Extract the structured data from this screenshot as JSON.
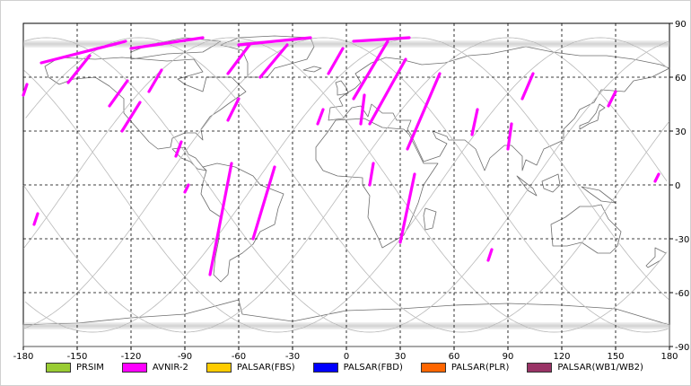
{
  "map": {
    "lon_ticks": [
      "-180",
      "-150",
      "-120",
      "-90",
      "-60",
      "-30",
      "0",
      "30",
      "60",
      "90",
      "120",
      "150",
      "180"
    ],
    "lat_ticks": [
      "90",
      "60",
      "30",
      "0",
      "-30",
      "-60",
      "-90"
    ],
    "lon_range": [
      -180,
      180
    ],
    "lat_range": [
      -90,
      90
    ],
    "grid": "dashed",
    "colors": {
      "coastline": "#6e6e6e",
      "orbit": "#bdbdbd",
      "grid": "#000000"
    }
  },
  "legend": {
    "placement": "bottom",
    "items": [
      {
        "label": "PRSIM",
        "color": "#99cc33"
      },
      {
        "label": "AVNIR-2",
        "color": "#ff00ff"
      },
      {
        "label": "PALSAR(FBS)",
        "color": "#ffcc00"
      },
      {
        "label": "PALSAR(FBD)",
        "color": "#0000ff"
      },
      {
        "label": "PALSAR(PLR)",
        "color": "#ff6600"
      },
      {
        "label": "PALSAR(WB1/WB2)",
        "color": "#993366"
      }
    ]
  },
  "chart_data": {
    "type": "map",
    "series": [
      {
        "name": "AVNIR-2",
        "color": "#ff00ff",
        "segments": [
          [
            [
              -143,
              72
            ],
            [
              -155,
              57
            ]
          ],
          [
            [
              -122,
              58
            ],
            [
              -132,
              44
            ]
          ],
          [
            [
              -103,
              64
            ],
            [
              -110,
              52
            ]
          ],
          [
            [
              -115,
              46
            ],
            [
              -125,
              30
            ]
          ],
          [
            [
              -92,
              24
            ],
            [
              -95,
              16
            ]
          ],
          [
            [
              -88,
              0
            ],
            [
              -90,
              -4
            ]
          ],
          [
            [
              -54,
              78
            ],
            [
              -66,
              62
            ]
          ],
          [
            [
              -60,
              48
            ],
            [
              -66,
              36
            ]
          ],
          [
            [
              -64,
              12
            ],
            [
              -76,
              -50
            ]
          ],
          [
            [
              -33,
              78
            ],
            [
              -48,
              60
            ]
          ],
          [
            [
              -40,
              10
            ],
            [
              -52,
              -30
            ]
          ],
          [
            [
              -2,
              76
            ],
            [
              -10,
              62
            ]
          ],
          [
            [
              -13,
              42
            ],
            [
              -16,
              34
            ]
          ],
          [
            [
              23,
              80
            ],
            [
              4,
              48
            ]
          ],
          [
            [
              10,
              50
            ],
            [
              8,
              34
            ]
          ],
          [
            [
              15,
              12
            ],
            [
              13,
              0
            ]
          ],
          [
            [
              33,
              70
            ],
            [
              13,
              34
            ]
          ],
          [
            [
              52,
              62
            ],
            [
              34,
              20
            ]
          ],
          [
            [
              38,
              6
            ],
            [
              30,
              -32
            ]
          ],
          [
            [
              73,
              42
            ],
            [
              70,
              28
            ]
          ],
          [
            [
              92,
              34
            ],
            [
              90,
              20
            ]
          ],
          [
            [
              104,
              62
            ],
            [
              98,
              48
            ]
          ],
          [
            [
              150,
              52
            ],
            [
              146,
              44
            ]
          ],
          [
            [
              174,
              6
            ],
            [
              172,
              2
            ]
          ],
          [
            [
              -172,
              -16
            ],
            [
              -174,
              -22
            ]
          ],
          [
            [
              81,
              -36
            ],
            [
              79,
              -42
            ]
          ],
          [
            [
              -178,
              56
            ],
            [
              -180,
              50
            ]
          ],
          [
            [
              -123,
              80
            ],
            [
              -170,
              68
            ]
          ],
          [
            [
              -80,
              82
            ],
            [
              -120,
              76
            ]
          ],
          [
            [
              -20,
              82
            ],
            [
              -60,
              78
            ]
          ],
          [
            [
              35,
              82
            ],
            [
              4,
              80
            ]
          ]
        ]
      }
    ]
  }
}
